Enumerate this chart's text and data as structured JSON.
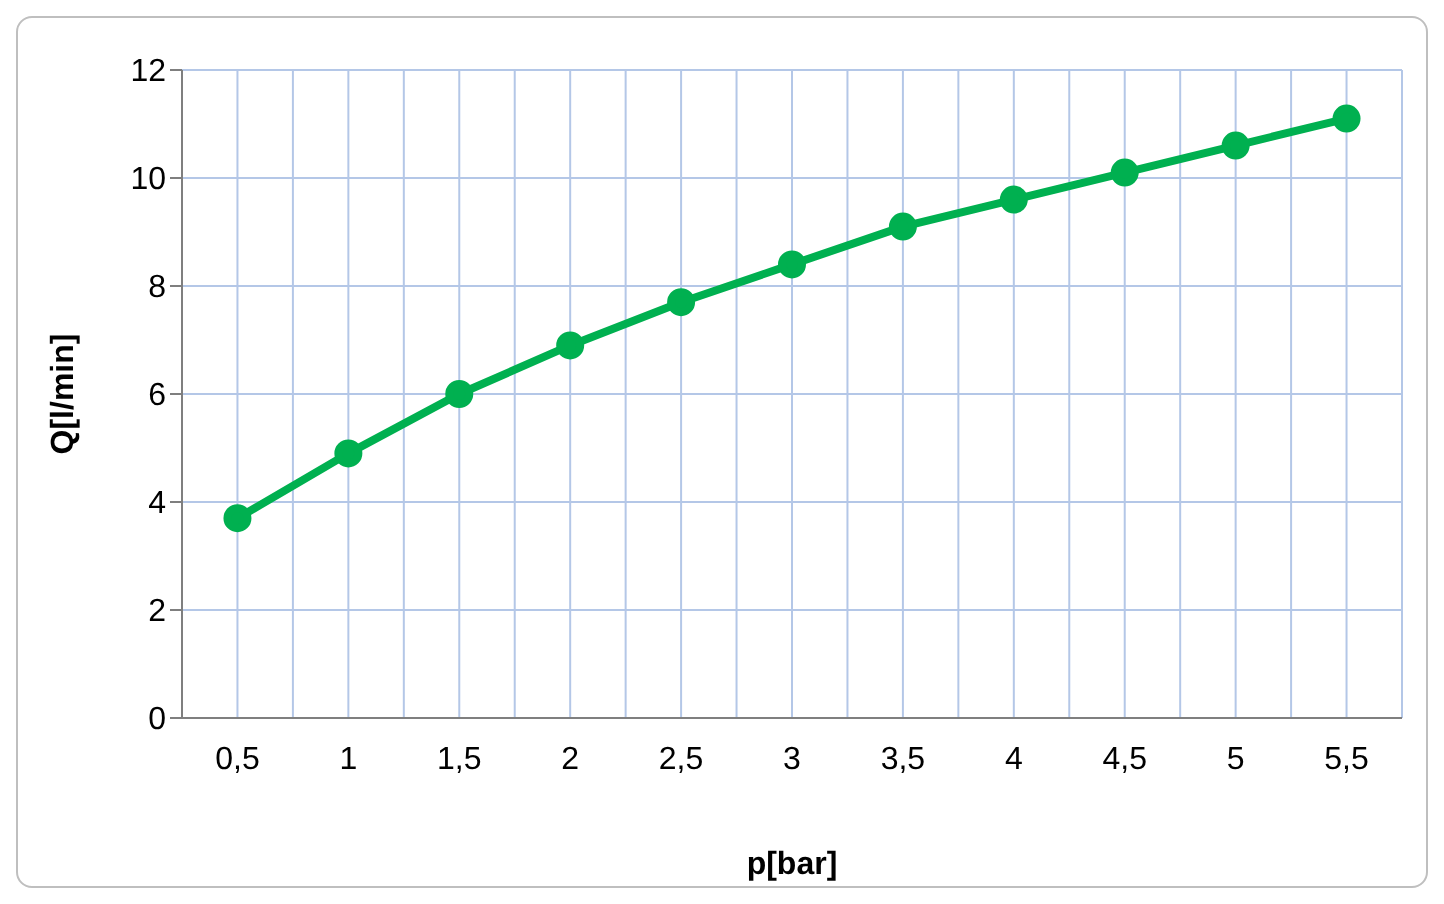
{
  "chart_data": {
    "type": "line",
    "xlabel": "p[bar]",
    "ylabel": "Q[l/min]",
    "categories": [
      "0,5",
      "1",
      "1,5",
      "2",
      "2,5",
      "3",
      "3,5",
      "4",
      "4,5",
      "5",
      "5,5"
    ],
    "series": [
      {
        "color": "#00b050",
        "values": [
          3.7,
          4.9,
          6.0,
          6.9,
          7.7,
          8.4,
          9.1,
          9.6,
          10.1,
          10.6,
          11.1
        ]
      }
    ],
    "ylim": [
      0,
      12
    ],
    "yticks": [
      0,
      2,
      4,
      6,
      8,
      10,
      12
    ],
    "grid": true,
    "marker": "circle",
    "line_style": "solid"
  }
}
